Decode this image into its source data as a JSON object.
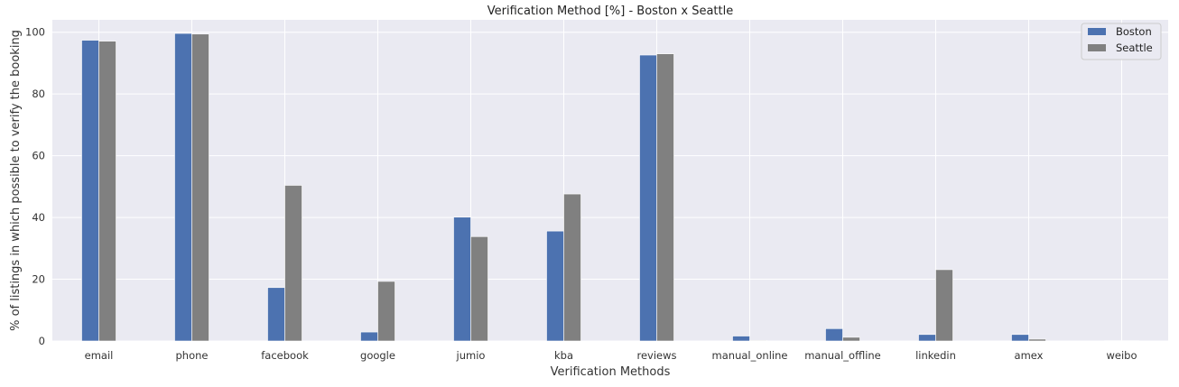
{
  "chart_data": {
    "type": "bar",
    "title": "Verification Method [%] - Boston x Seattle",
    "xlabel": "Verification Methods",
    "ylabel": "% of listings in which possible to verify the booking",
    "categories": [
      "email",
      "phone",
      "facebook",
      "google",
      "jumio",
      "kba",
      "reviews",
      "manual_online",
      "manual_offline",
      "linkedin",
      "amex",
      "weibo"
    ],
    "series": [
      {
        "name": "Boston",
        "color": "#4c72b0",
        "values": [
          97.4,
          99.6,
          17.3,
          2.9,
          40.1,
          35.6,
          92.6,
          1.6,
          4.0,
          2.1,
          2.1,
          0.1
        ]
      },
      {
        "name": "Seattle",
        "color": "#808080",
        "values": [
          97.1,
          99.4,
          50.4,
          19.3,
          33.8,
          47.6,
          93.0,
          0.2,
          1.2,
          23.1,
          0.6,
          0.1
        ]
      }
    ],
    "ylim": [
      0,
      104
    ],
    "yticks": [
      0,
      20,
      40,
      60,
      80,
      100
    ],
    "grid": true,
    "legend_position": "top-right"
  }
}
